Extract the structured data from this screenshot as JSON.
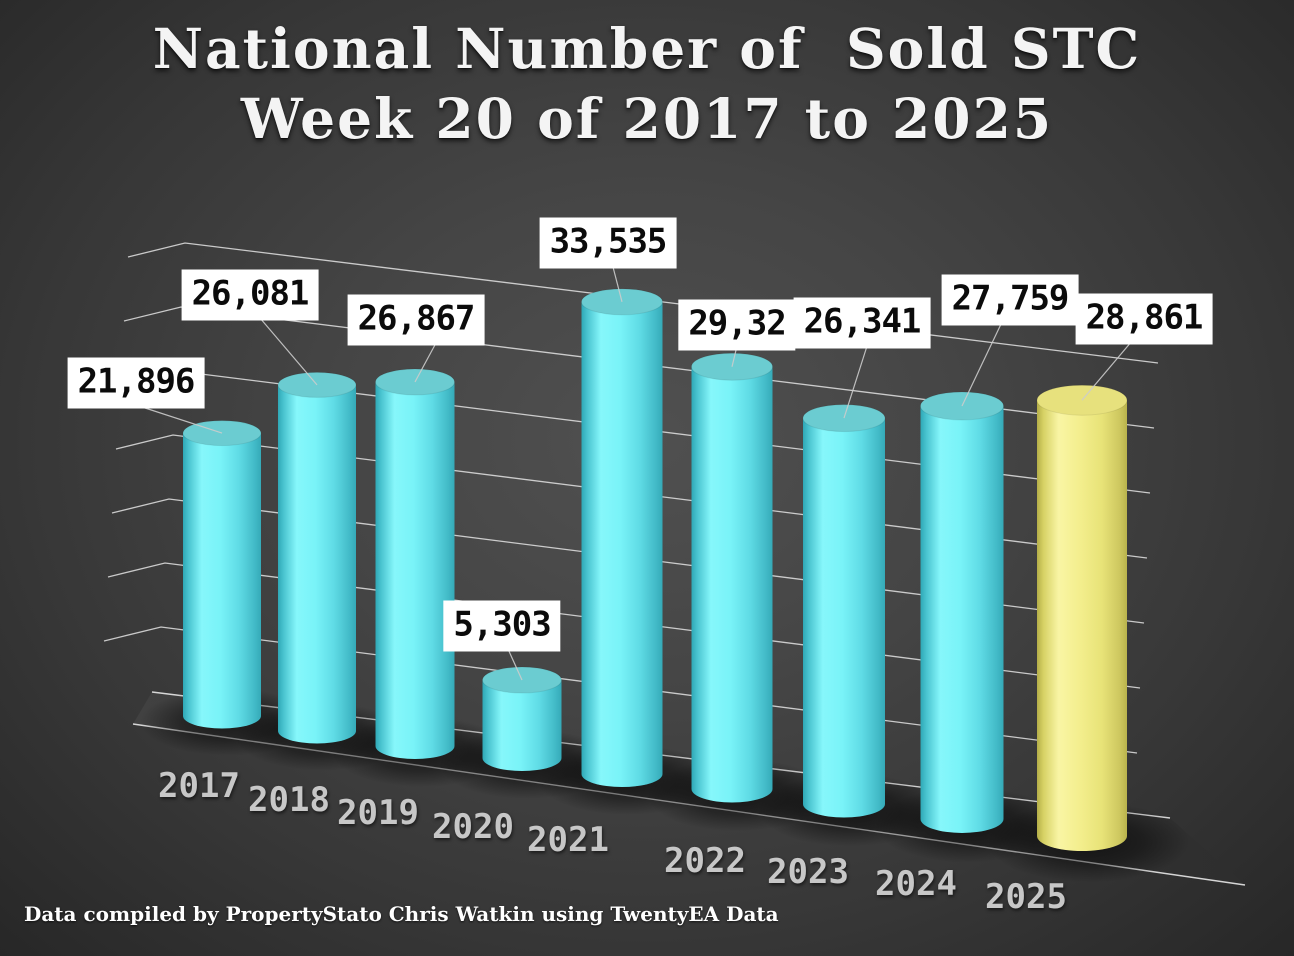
{
  "title": {
    "line1": "National Number of  Sold STC",
    "line2": "Week 20 of 2017 to 2025"
  },
  "footer": {
    "attribution": "Data compiled by PropertyStato Chris Watkin using TwentyEA Data"
  },
  "chart_data": {
    "type": "bar",
    "style": "3d-cylinder-perspective",
    "title": "National Number of Sold STC Week 20 of 2017 to 2025",
    "categories": [
      "2017",
      "2018",
      "2019",
      "2020",
      "2021",
      "2022",
      "2023",
      "2024",
      "2025"
    ],
    "series": [
      {
        "name": "Sold STC week 20",
        "values": [
          21896,
          26081,
          26867,
          5303,
          33535,
          29325,
          26341,
          27759,
          28861
        ]
      }
    ],
    "data_labels": [
      "21,896",
      "26,081",
      "26,867",
      "5,303",
      "33,535",
      "29,32",
      "26,341",
      "27,759",
      "28,861"
    ],
    "notes": "2022 callout label is partially hidden behind the 2023 label box; only '29,32' is visible, so its numeric value is estimated (~29,32x) for bar height only.",
    "xlabel": "",
    "ylabel": "",
    "ylim": [
      0,
      35000
    ],
    "gridline_interval": 5000,
    "grid": "horizontal gridlines on receding 3D back plane, no visible value axis labels",
    "legend": "none",
    "colors": {
      "bar_default": "#76f2f8",
      "bar_2025_highlight": "#f3ee8d",
      "bar_top_default": "#6bccd1",
      "bar_top_2025": "#e7e17d",
      "label_box_bg": "#ffffff",
      "label_text": "#0b0b0b",
      "gridline": "#e3e3e3",
      "year_label": "#c7c7c7",
      "background_center": "#505050",
      "background_corner": "#272727",
      "floor": "#383838"
    }
  }
}
